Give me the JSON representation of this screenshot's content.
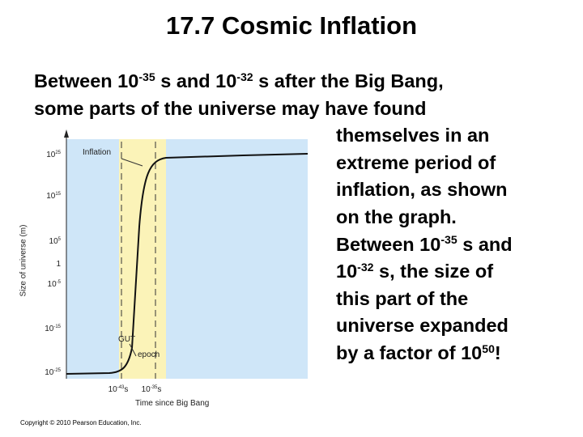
{
  "title": "17.7 Cosmic Inflation",
  "body": [
    [
      "Between 10",
      {
        "sup": "-35"
      },
      " s and 10",
      {
        "sup": "-32"
      },
      " s after the Big Bang,"
    ],
    [
      "some parts of the universe may have found"
    ],
    [
      "themselves in an"
    ],
    [
      "extreme period of"
    ],
    [
      "inflation, as shown"
    ],
    [
      "on the graph."
    ],
    [
      "Between 10",
      {
        "sup": "-35"
      },
      " s and"
    ],
    [
      "10",
      {
        "sup": "-32"
      },
      " s, the size of"
    ],
    [
      "this part of the"
    ],
    [
      "universe expanded"
    ],
    [
      "by a factor of 10",
      {
        "sup": "50"
      },
      "!"
    ]
  ],
  "figure": {
    "y_axis_label": "Size of universe (m)",
    "x_axis_label": "Time since Big Bang",
    "y_labels": [
      [
        "10",
        {
          "sup": "25"
        }
      ],
      [
        "10",
        {
          "sup": "15"
        }
      ],
      [
        "10",
        {
          "sup": "5"
        }
      ],
      [
        "1"
      ],
      [
        "10",
        {
          "sup": "-5"
        }
      ],
      [
        "10",
        {
          "sup": "-15"
        }
      ],
      [
        "10",
        {
          "sup": "-25"
        }
      ]
    ],
    "x_labels": [
      [
        "10",
        {
          "sup": "-43"
        },
        "s"
      ],
      [
        "10",
        {
          "sup": "-35"
        },
        "s"
      ]
    ],
    "inflation_label": "Inflation",
    "gut_label": "GUT",
    "epoch_label": "epoch"
  },
  "copyright": "Copyright © 2010 Pearson Education, Inc."
}
